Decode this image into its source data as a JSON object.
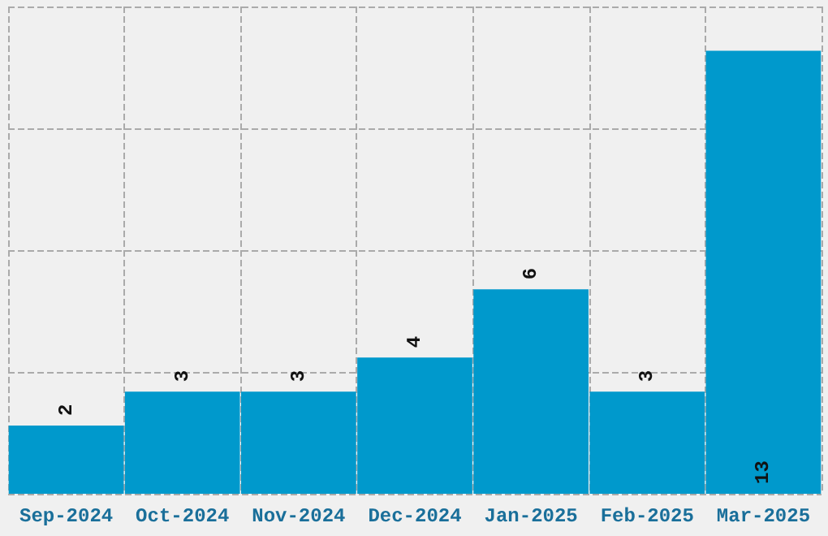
{
  "chart_data": {
    "type": "bar",
    "categories": [
      "Sep-2024",
      "Oct-2024",
      "Nov-2024",
      "Dec-2024",
      "Jan-2025",
      "Feb-2025",
      "Mar-2025"
    ],
    "values": [
      2,
      3,
      3,
      4,
      6,
      3,
      13
    ],
    "color": "#0099cc",
    "relative": false,
    "ylim": [
      0,
      14.3
    ],
    "grid": true,
    "data_labels": true
  }
}
